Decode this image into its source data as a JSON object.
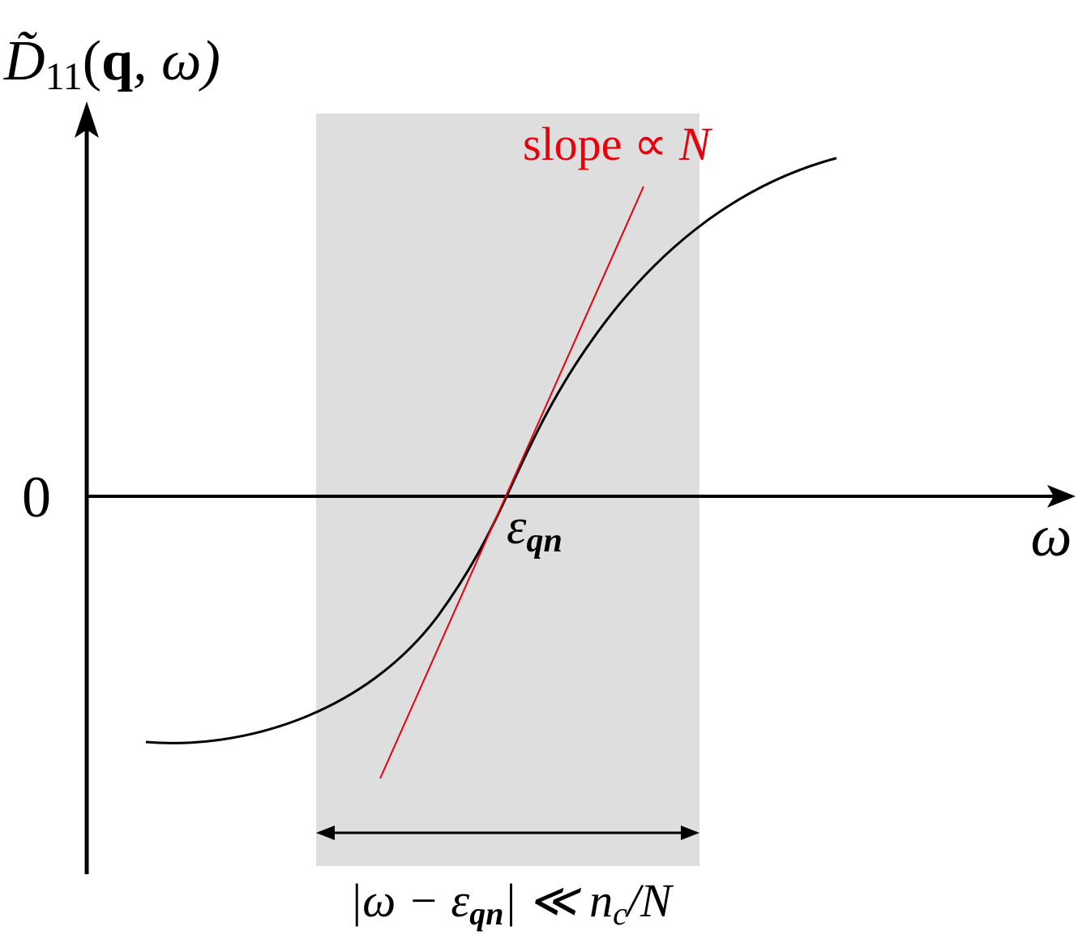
{
  "y_axis_label": {
    "symbol": "D̃",
    "subscript": "11",
    "open": "(",
    "vector": "q",
    "rest": ", ω)"
  },
  "origin_label": "0",
  "x_axis_label": "ω",
  "center_label": {
    "symbol": "ε",
    "subscript": "qn"
  },
  "slope_label": {
    "text": "slope ∝ ",
    "variable": "N"
  },
  "window_label": {
    "part1": "|ω − ε",
    "sub1": "qn",
    "part2": "| ≪ n",
    "sub2": "c",
    "part3": "/N"
  }
}
